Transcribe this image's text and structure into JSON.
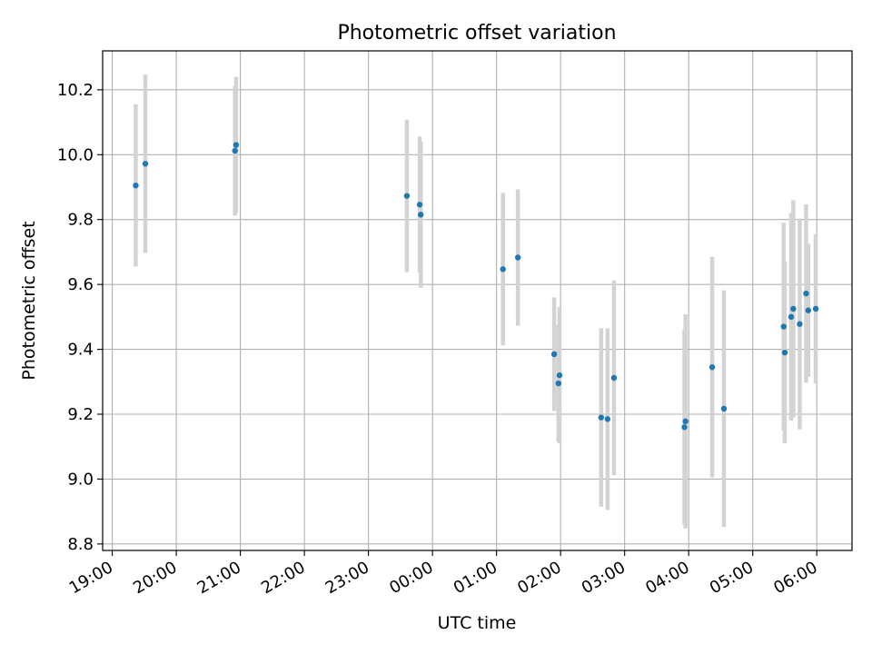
{
  "chart_data": {
    "type": "scatter",
    "title": "Photometric offset variation",
    "xlabel": "UTC time",
    "ylabel": "Photometric offset",
    "x_is_time": true,
    "xlim": [
      "19:00",
      "06:30"
    ],
    "ylim": [
      8.78,
      10.32
    ],
    "x_ticks": [
      "19:00",
      "20:00",
      "21:00",
      "22:00",
      "23:00",
      "00:00",
      "01:00",
      "02:00",
      "03:00",
      "04:00",
      "05:00",
      "06:00"
    ],
    "y_ticks": [
      "8.8",
      "9.0",
      "9.2",
      "9.4",
      "9.6",
      "9.8",
      "10.0",
      "10.2"
    ],
    "grid": true,
    "point_color": "#1f77b4",
    "errorbar_color": "#d3d3d3",
    "points": [
      {
        "time": "19:22",
        "y": 9.905,
        "err": 0.25
      },
      {
        "time": "19:31",
        "y": 9.972,
        "err": 0.275
      },
      {
        "time": "20:55",
        "y": 10.012,
        "err": 0.2
      },
      {
        "time": "20:56",
        "y": 10.03,
        "err": 0.21
      },
      {
        "time": "23:36",
        "y": 9.873,
        "err": 0.235
      },
      {
        "time": "23:48",
        "y": 9.846,
        "err": 0.21
      },
      {
        "time": "23:49",
        "y": 9.815,
        "err": 0.225
      },
      {
        "time": "01:06",
        "y": 9.647,
        "err": 0.235
      },
      {
        "time": "01:20",
        "y": 9.683,
        "err": 0.21
      },
      {
        "time": "01:54",
        "y": 9.385,
        "err": 0.175
      },
      {
        "time": "01:58",
        "y": 9.295,
        "err": 0.18
      },
      {
        "time": "01:59",
        "y": 9.32,
        "err": 0.21
      },
      {
        "time": "02:38",
        "y": 9.19,
        "err": 0.275
      },
      {
        "time": "02:44",
        "y": 9.185,
        "err": 0.28
      },
      {
        "time": "02:50",
        "y": 9.312,
        "err": 0.3
      },
      {
        "time": "03:56",
        "y": 9.16,
        "err": 0.3
      },
      {
        "time": "03:57",
        "y": 9.178,
        "err": 0.33
      },
      {
        "time": "04:22",
        "y": 9.345,
        "err": 0.34
      },
      {
        "time": "04:33",
        "y": 9.217,
        "err": 0.365
      },
      {
        "time": "05:29",
        "y": 9.47,
        "err": 0.32
      },
      {
        "time": "05:30",
        "y": 9.39,
        "err": 0.28
      },
      {
        "time": "05:36",
        "y": 9.5,
        "err": 0.32
      },
      {
        "time": "05:38",
        "y": 9.525,
        "err": 0.335
      },
      {
        "time": "05:44",
        "y": 9.478,
        "err": 0.325
      },
      {
        "time": "05:50",
        "y": 9.572,
        "err": 0.275
      },
      {
        "time": "05:52",
        "y": 9.52,
        "err": 0.205
      },
      {
        "time": "05:59",
        "y": 9.525,
        "err": 0.23
      }
    ]
  }
}
